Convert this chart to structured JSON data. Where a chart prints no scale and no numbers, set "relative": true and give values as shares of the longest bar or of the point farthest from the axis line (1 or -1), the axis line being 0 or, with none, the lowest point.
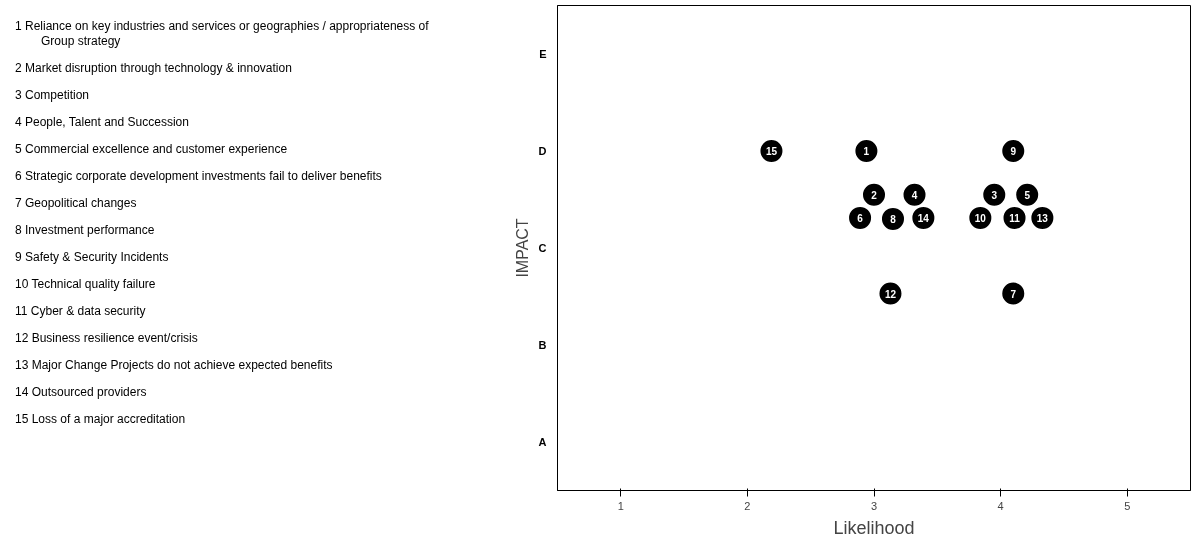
{
  "chart_data": {
    "type": "scatter",
    "xlabel": "Likelihood",
    "ylabel": "IMPACT",
    "x": [
      2.94,
      3.0,
      3.95,
      3.32,
      4.21,
      2.89,
      4.1,
      3.15,
      4.1,
      3.84,
      4.11,
      3.13,
      4.33,
      3.39,
      2.19
    ],
    "values": [
      1.0,
      0.871,
      0.871,
      0.871,
      0.871,
      0.803,
      0.58,
      0.8,
      1.0,
      0.803,
      0.803,
      0.58,
      0.803,
      0.803,
      1.0
    ],
    "relative": true,
    "color": "#000000",
    "marker": "circle",
    "xlim": [
      0.5,
      5.5
    ],
    "xticks": [
      1,
      2,
      3,
      4,
      5
    ],
    "grid": false,
    "annotations": [
      "1 Reliance on key industries and services or geographies / appropriateness of Group strategy",
      "2 Market disruption through technology & innovation",
      "3 Competition",
      "4 People, Talent and Succession",
      "5 Commercial excellence and customer experience",
      "6 Strategic corporate development investments fail to deliver benefits",
      "7 Geopolitical changes",
      "8 Investment performance",
      "9 Safety & Security Incidents",
      "10 Technical quality failure",
      "11 Cyber & data security",
      "12 Business resilience event/crisis",
      "13 Major Change Projects do not achieve expected benefits",
      "14 Outsourced providers",
      "15 Loss of a major accreditation",
      {
        "text": "1",
        "x": 2.94,
        "y": 1.0
      },
      {
        "text": "2",
        "x": 3.0,
        "y": 0.871
      },
      {
        "text": "3",
        "x": 3.95,
        "y": 0.871
      },
      {
        "text": "4",
        "x": 3.32,
        "y": 0.871
      },
      {
        "text": "5",
        "x": 4.21,
        "y": 0.871
      },
      {
        "text": "6",
        "x": 2.89,
        "y": 0.803
      },
      {
        "text": "7",
        "x": 4.1,
        "y": 0.58
      },
      {
        "text": "8",
        "x": 3.15,
        "y": 0.8
      },
      {
        "text": "9",
        "x": 4.1,
        "y": 1.0
      },
      {
        "text": "10",
        "x": 3.84,
        "y": 0.803
      },
      {
        "text": "11",
        "x": 4.11,
        "y": 0.803
      },
      {
        "text": "12",
        "x": 3.13,
        "y": 0.58
      },
      {
        "text": "13",
        "x": 4.33,
        "y": 0.803
      },
      {
        "text": "14",
        "x": 3.39,
        "y": 0.803
      },
      {
        "text": "15",
        "x": 2.19,
        "y": 1.0
      }
    ],
    "y_categories": [
      "E",
      "D",
      "C",
      "B",
      "A"
    ]
  }
}
